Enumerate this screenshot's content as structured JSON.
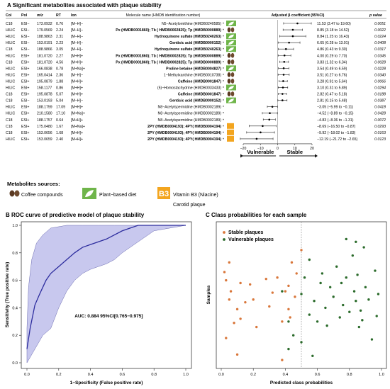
{
  "panel_a": {
    "title": "A Significant metabolites associated with plaque stability",
    "headers": {
      "col": "Col",
      "pol": "Pol",
      "mz": "m/z",
      "rt": "RT",
      "ion": "Ion",
      "name": "Molecule name (HMDB identification number)",
      "beta": "Adjusted β coefficient (95%CI)",
      "p": "p value"
    },
    "rows": [
      {
        "col": "C18",
        "pol": "ESI−",
        "mz": "173.0932",
        "rt": "0.76",
        "ion": "[M−H]−",
        "name": "N5−Acetylornithine (HMDB0240585)",
        "bold": false,
        "icon": "plant",
        "beta": 11.53,
        "lo": 3.47,
        "hi": 19.6,
        "ci": "11.53 (3.47 to 19.60)",
        "p": "0.0051"
      },
      {
        "col": "HILIC",
        "pol": "ESI−",
        "mz": "179.0569",
        "rt": "2.24",
        "ion": "[M−H]−",
        "name": "Px (HMDB0001860); Tb ( HMDB0002825); Tp (HMDB0000889)",
        "bold": true,
        "icon": "coffee",
        "beta": 8.85,
        "lo": 3.18,
        "hi": 14.52,
        "ci": "8.85 (3.18 to 14.52)",
        "p": "0.0022"
      },
      {
        "col": "HILIC",
        "pol": "ESI−",
        "mz": "188.9863",
        "rt": "2.31",
        "ion": "[M−H]−",
        "name": "Hydroquinone sulfate (HMDB0240263)",
        "bold": true,
        "icon": "plant",
        "beta": 8.84,
        "lo": 1.25,
        "hi": 16.43,
        "ci": "8.84 (1.25 to 16.43)",
        "p": "0.0224"
      },
      {
        "col": "HILIC",
        "pol": "ESI−",
        "mz": "153.0191",
        "rt": "2.23",
        "ion": "[M−H]−",
        "name": "Gentisic acid (HMDB0000152)",
        "bold": true,
        "icon": "plant",
        "beta": 6.65,
        "lo": 0.28,
        "hi": 13.01,
        "ci": "6.65 (0.28 to 13.01)",
        "p": "0.0408"
      },
      {
        "col": "C18",
        "pol": "ESI−",
        "mz": "188.9866",
        "rt": "3.05",
        "ion": "[M−H]−",
        "name": "Hydroquinone sulfate (HMDB0240263)",
        "bold": true,
        "icon": "plant",
        "beta": 4.86,
        "lo": 0.43,
        "hi": 9.3,
        "ci": "4.86 (0.43 to 9.30)",
        "p": "0.0317"
      },
      {
        "col": "HILIC",
        "pol": "ESI+",
        "mz": "181.0720",
        "rt": "2.27",
        "ion": "[M+H]+",
        "name": "Px (HMDB0001860); Tb ( HMDB0002825); Tp (HMDB0000889)",
        "bold": true,
        "icon": "coffee",
        "beta": 4.0,
        "lo": 0.29,
        "hi": 7.7,
        "ci": "4.00 (0.29 to 7.70)",
        "p": "0.0345"
      },
      {
        "col": "C18",
        "pol": "ESI+",
        "mz": "181.0720",
        "rt": "4.56",
        "ion": "[M+H]+",
        "name": "Px (HMDB0001860); Tb ( HMDB0002825); Tp (HMDB0000889)",
        "bold": true,
        "icon": "coffee",
        "beta": 3.83,
        "lo": 1.32,
        "hi": 6.34,
        "ci": "3.83 (1.32 to 6.34)",
        "p": "0.0028"
      },
      {
        "col": "HILIC",
        "pol": "ESI+",
        "mz": "166.0838",
        "rt": "0.78",
        "ion": "[M+Na]+",
        "name": "Proline betaine (HMDB0004827)",
        "bold": true,
        "icon": "plant",
        "beta": 3.54,
        "lo": 0.49,
        "hi": 6.59,
        "ci": "3.54 (0.49 to 6.59)",
        "p": "0.0228"
      },
      {
        "col": "HILIC",
        "pol": "ESI+",
        "mz": "165.0414",
        "rt": "2.36",
        "ion": "[M−H]−",
        "name": "1−Methylxanthine (HMDB0010738)",
        "bold": false,
        "icon": "coffee",
        "beta": 3.51,
        "lo": 0.27,
        "hi": 6.76,
        "ci": "3.51 (0.27 to 6.76)",
        "p": "0.0340"
      },
      {
        "col": "HILIC",
        "pol": "ESI+",
        "mz": "195.0879",
        "rt": "1.88",
        "ion": "[M+H]+",
        "name": "Caffeine (HMDB0001847)",
        "bold": true,
        "icon": "coffee",
        "beta": 3.28,
        "lo": 0.91,
        "hi": 5.64,
        "ci": "3.28 (0.91 to 5.64)",
        "p": "0.0066"
      },
      {
        "col": "HILIC",
        "pol": "ESI+",
        "mz": "158.1177",
        "rt": "0.86",
        "ion": "[M+H]+",
        "name": "(5)−Homostachydrine (HMDB0033433)",
        "bold": false,
        "icon": "plant",
        "beta": 3.1,
        "lo": 0.31,
        "hi": 5.89,
        "ci": "3.10 (0.31 to 5.89)",
        "p": "0.0294"
      },
      {
        "col": "C18",
        "pol": "ESI+",
        "mz": "195.0878",
        "rt": "5.07",
        "ion": "[M+H]+",
        "name": "Caffeine (HMDB0001847)",
        "bold": true,
        "icon": "coffee",
        "beta": 2.82,
        "lo": 0.47,
        "hi": 5.18,
        "ci": "2.82 (0.47 to 5.18)",
        "p": "0.0188"
      },
      {
        "col": "C18",
        "pol": "ESI−",
        "mz": "153.0193",
        "rt": "5.04",
        "ion": "[M−H]−",
        "name": "Gentisic acid (HMDB0000152)",
        "bold": true,
        "icon": "plant",
        "beta": 2.81,
        "lo": 0.15,
        "hi": 5.48,
        "ci": "2.81 (0.15 to 5.48)",
        "p": "0.0387"
      },
      {
        "col": "HILIC",
        "pol": "ESI+",
        "mz": "188.1759",
        "rt": "17.09",
        "ion": "[M+H]+",
        "name": "N8−Acetylspermidine (HMDB0002189)",
        "bold": false,
        "icon": "none",
        "beta": -3.05,
        "lo": -5.99,
        "hi": -0.11,
        "ci": "−3.05 (−5.99 to −0.11)",
        "p": "0.0418"
      },
      {
        "col": "HILIC",
        "pol": "ESI+",
        "mz": "210.1580",
        "rt": "17.10",
        "ion": "[M+Na]+",
        "name": "N8−Acetylspermidine (HMDB0002189)",
        "bold": false,
        "icon": "none",
        "beta": -4.52,
        "lo": -8.89,
        "hi": -0.15,
        "ci": "−4.52 (−8.89 to −0.15)",
        "p": "0.0428"
      },
      {
        "col": "C18",
        "pol": "ESI+",
        "mz": "188.1757",
        "rt": "0.64",
        "ion": "[M+H]+",
        "name": "N8−Acetylspermidine (HMDB0002189)",
        "bold": false,
        "icon": "none",
        "beta": -4.83,
        "lo": -8.36,
        "hi": -1.31,
        "ci": "−4.83 (−8.36 to −1.31)",
        "p": "0.0072"
      },
      {
        "col": "C18",
        "pol": "ESI+",
        "mz": "175.0480",
        "rt": "1.67",
        "ion": "[M+Na]+",
        "name": "2PY (HMDB0004193); 4PY( HMDB0004194)",
        "bold": true,
        "icon": "b3",
        "beta": -8.69,
        "lo": -16.5,
        "hi": -0.87,
        "ci": "−8.69 (−16.50 to −0.87)",
        "p": "0.0293"
      },
      {
        "col": "C18",
        "pol": "ESI+",
        "mz": "153.0656",
        "rt": "1.68",
        "ion": "[M+H]+",
        "name": "2PY (HMDB0004193); 4PY( HMDB0004194)",
        "bold": true,
        "icon": "b3",
        "beta": -9.92,
        "lo": -18.02,
        "hi": -1.83,
        "ci": "−9.92 (−18.02 to −1.83)",
        "p": "0.0163"
      },
      {
        "col": "HILIC",
        "pol": "ESI+",
        "mz": "153.0659",
        "rt": "2.40",
        "ion": "[M+H]+",
        "name": "2PY (HMDB0004193); 4PY( HMDB0004194)",
        "bold": true,
        "icon": "b3",
        "beta": -12.19,
        "lo": -21.72,
        "hi": -2.65,
        "ci": "−12.19 (−21.72 to −2.65)",
        "p": "0.0123"
      }
    ],
    "forest_ticks": [
      "−20",
      "−10",
      "0",
      "10",
      "20"
    ],
    "vulnerable_label": "Vulnerable",
    "stable_label": "Stable"
  },
  "legend": {
    "title": "Metabolites sources:",
    "coffee": "Coffee compounds",
    "plant": "Plant−based diet",
    "b3": "Vitamin B3 (Niacine)",
    "b3_icon_text": "B3",
    "carotid": "Carotid plaque"
  },
  "colors": {
    "orange": "#d9773b",
    "green": "#2b6b2b",
    "blue": "#2d2d9e",
    "band": "#c8c8ee",
    "plant": "#6fb54a",
    "b3": "#f3a51f",
    "coffee": "#5b3a22"
  },
  "chart_data": [
    {
      "type": "line",
      "title": "B ROC curve of predictive model of plaque stability",
      "xlabel": "1−Specificity (False positive rate)",
      "ylabel": "Sensitivity (True positive rate)",
      "xlim": [
        0,
        1
      ],
      "ylim": [
        0,
        1
      ],
      "x_ticks": [
        "0.0",
        "0.2",
        "0.4",
        "0.6",
        "0.8",
        "1.0"
      ],
      "y_ticks": [
        "0.0",
        "0.2",
        "0.4",
        "0.6",
        "0.8",
        "1.0"
      ],
      "annotation": "AUC: 0.884 95%CI[0.765−0.975]",
      "series": [
        {
          "x": [
            0,
            0.02,
            0.05,
            0.08,
            0.1,
            0.12,
            0.15,
            0.2,
            0.25,
            0.3,
            0.35,
            0.4,
            0.5,
            0.6,
            0.65,
            0.7,
            0.8,
            1.0
          ],
          "y": [
            0.1,
            0.25,
            0.42,
            0.5,
            0.55,
            0.6,
            0.65,
            0.7,
            0.75,
            0.8,
            0.84,
            0.86,
            0.9,
            0.96,
            0.98,
            1.0,
            1.0,
            1.0
          ]
        }
      ],
      "band_upper": {
        "x": [
          0,
          0.01,
          0.03,
          0.06,
          0.1,
          0.15,
          0.25,
          0.35,
          0.45,
          0.5,
          0.55,
          1.0
        ],
        "y": [
          0.25,
          0.55,
          0.75,
          0.87,
          0.93,
          0.98,
          1.0,
          1.0,
          1.0,
          1.0,
          1.0,
          1.0
        ]
      },
      "band_lower": {
        "x": [
          0,
          0.05,
          0.1,
          0.15,
          0.2,
          0.25,
          0.3,
          0.35,
          0.4,
          0.45,
          0.5,
          0.55,
          0.6,
          0.7,
          0.8,
          1.0
        ],
        "y": [
          0,
          0.1,
          0.2,
          0.25,
          0.4,
          0.52,
          0.6,
          0.65,
          0.68,
          0.7,
          0.72,
          0.75,
          0.8,
          0.88,
          0.96,
          1.0
        ]
      }
    },
    {
      "type": "scatter",
      "title": "C Class probabilities for each sample",
      "xlabel": "Predicted class probabilities",
      "ylabel": "Samples",
      "xlim": [
        0,
        1
      ],
      "x_ticks": [
        "0.0",
        "0.2",
        "0.4",
        "0.6",
        "0.8",
        "1.0"
      ],
      "threshold": 0.5,
      "series": [
        {
          "name": "Stable plaques",
          "points": [
            [
              0.02,
              0.66
            ],
            [
              0.05,
              0.73
            ],
            [
              0.03,
              0.6
            ],
            [
              0.06,
              0.52
            ],
            [
              0.1,
              0.39
            ],
            [
              0.12,
              0.58
            ],
            [
              0.05,
              0.46
            ],
            [
              0.08,
              0.29
            ],
            [
              0.18,
              0.57
            ],
            [
              0.2,
              0.46
            ],
            [
              0.22,
              0.26
            ],
            [
              0.28,
              0.61
            ],
            [
              0.3,
              0.41
            ],
            [
              0.32,
              0.51
            ],
            [
              0.35,
              0.62
            ],
            [
              0.38,
              0.3
            ],
            [
              0.4,
              0.52
            ],
            [
              0.42,
              0.39
            ],
            [
              0.42,
              0.56
            ],
            [
              0.44,
              0.73
            ],
            [
              0.46,
              0.48
            ],
            [
              0.47,
              0.65
            ],
            [
              0.5,
              0.82
            ],
            [
              0.03,
              0.18
            ],
            [
              0.1,
              0.06
            ],
            [
              0.43,
              0.33
            ],
            [
              0.38,
              0.02
            ],
            [
              0.12,
              0.32
            ],
            [
              0.15,
              0.44
            ]
          ]
        },
        {
          "name": "Vulnerable plaques",
          "points": [
            [
              0.38,
              0.52
            ],
            [
              0.42,
              0.3
            ],
            [
              0.45,
              0.2
            ],
            [
              0.5,
              0.5
            ],
            [
              0.52,
              0.62
            ],
            [
              0.55,
              0.35
            ],
            [
              0.55,
              0.75
            ],
            [
              0.58,
              0.45
            ],
            [
              0.6,
              0.3
            ],
            [
              0.62,
              0.58
            ],
            [
              0.63,
              0.65
            ],
            [
              0.65,
              0.4
            ],
            [
              0.66,
              0.27
            ],
            [
              0.68,
              0.55
            ],
            [
              0.7,
              0.48
            ],
            [
              0.72,
              0.7
            ],
            [
              0.74,
              0.33
            ],
            [
              0.75,
              0.58
            ],
            [
              0.76,
              0.42
            ],
            [
              0.78,
              0.62
            ],
            [
              0.8,
              0.37
            ],
            [
              0.82,
              0.78
            ],
            [
              0.83,
              0.52
            ],
            [
              0.84,
              0.45
            ],
            [
              0.85,
              0.64
            ],
            [
              0.86,
              0.26
            ],
            [
              0.87,
              0.38
            ],
            [
              0.88,
              0.31
            ],
            [
              0.9,
              0.55
            ],
            [
              0.92,
              0.46
            ],
            [
              0.94,
              0.17
            ],
            [
              0.96,
              0.67
            ],
            [
              0.97,
              0.34
            ],
            [
              0.98,
              0.5
            ],
            [
              0.89,
              0.84
            ],
            [
              0.84,
              0.88
            ],
            [
              0.78,
              0.9
            ],
            [
              0.42,
              0.1
            ],
            [
              0.5,
              0.15
            ],
            [
              0.57,
              0.05
            ]
          ]
        }
      ]
    }
  ]
}
